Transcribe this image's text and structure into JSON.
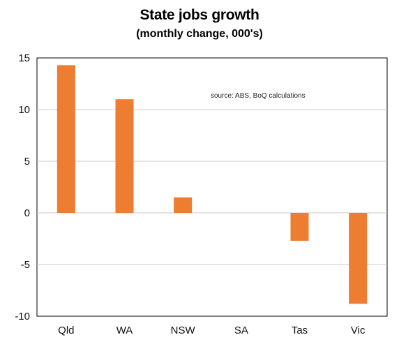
{
  "chart_data": {
    "type": "bar",
    "title": "State jobs growth",
    "subtitle": "(monthly change, 000's)",
    "xlabel": "",
    "ylabel": "",
    "annotation": "source:  ABS, BoQ calculations",
    "categories": [
      "Qld",
      "WA",
      "NSW",
      "SA",
      "Tas",
      "Vic"
    ],
    "values": [
      14.3,
      11.0,
      1.5,
      0,
      -2.7,
      -8.8
    ],
    "ylim": [
      -10,
      15
    ],
    "yticks": [
      15,
      10,
      5,
      0,
      -5,
      -10
    ],
    "grid": true,
    "bar_color": "#ED7D31",
    "grid_color": "#c8c8c8"
  }
}
